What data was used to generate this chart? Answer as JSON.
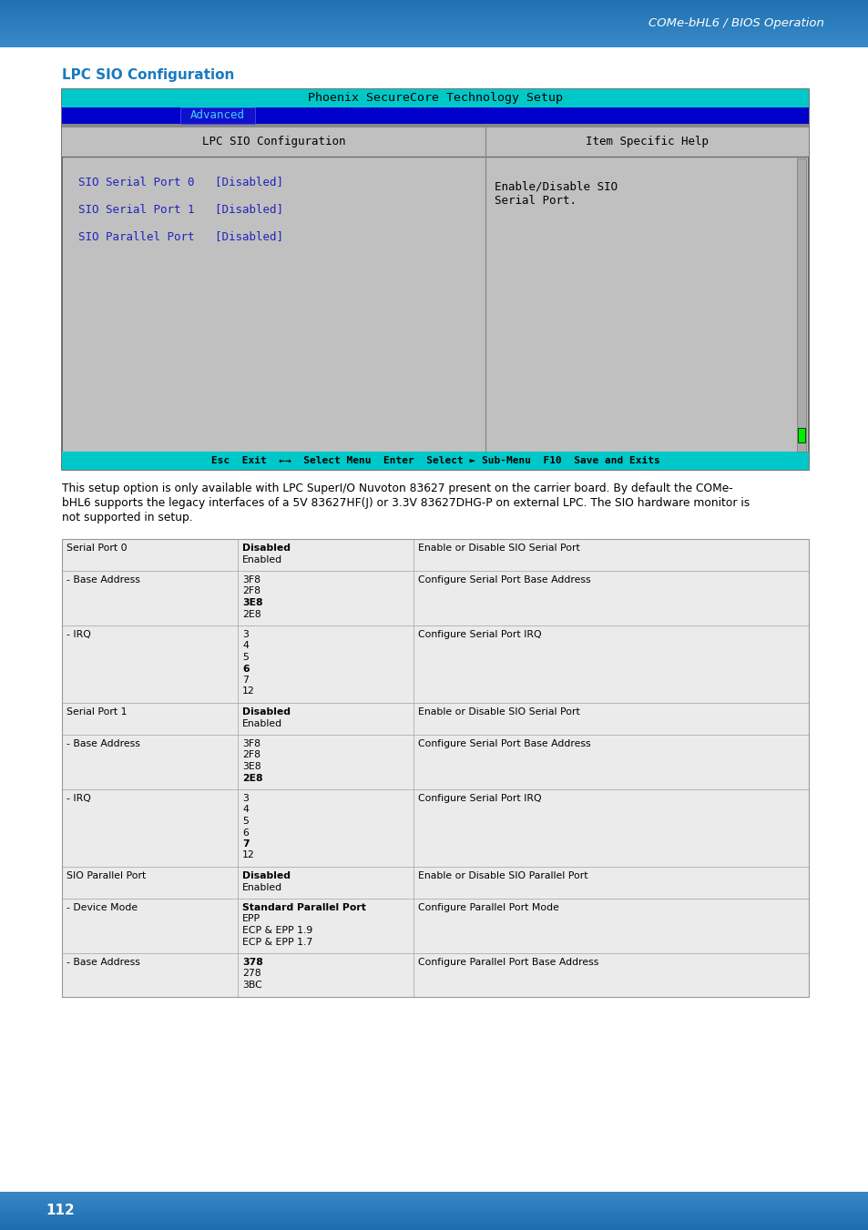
{
  "page_title": "COMe-bHL6 / BIOS Operation",
  "section_title": "LPC SIO Configuration",
  "bios_title": "Phoenix SecureCore Technology Setup",
  "bios_tab": "Advanced",
  "bios_left_header": "LPC SIO Configuration",
  "bios_right_header": "Item Specific Help",
  "bios_items": [
    "SIO Serial Port 0   [Disabled]",
    "SIO Serial Port 1   [Disabled]",
    "SIO Parallel Port   [Disabled]"
  ],
  "bios_help_line1": "Enable/Disable SIO",
  "bios_help_line2": "Serial Port.",
  "bios_bottom_bar": "Esc  Exit  ←→  Select Menu  Enter  Select ► Sub-Menu  F10  Save and Exits",
  "desc_lines": [
    "This setup option is only available with LPC SuperI/O Nuvoton 83627 present on the carrier board. By default the COMe-",
    "bHL6 supports the legacy interfaces of a 5V 83627HF(J) or 3.3V 83627DHG-P on external LPC. The SIO hardware monitor is",
    "not supported in setup."
  ],
  "table_rows": [
    {
      "col1": "Serial Port 0",
      "col2": [
        "Disabled",
        "Enabled"
      ],
      "col2_bold": "Disabled",
      "col3": "Enable or Disable SIO Serial Port"
    },
    {
      "col1": "- Base Address",
      "col2": [
        "3F8",
        "2F8",
        "3E8",
        "2E8"
      ],
      "col2_bold": "3E8",
      "col3": "Configure Serial Port Base Address"
    },
    {
      "col1": "- IRQ",
      "col2": [
        "3",
        "4",
        "5",
        "6",
        "7",
        "12"
      ],
      "col2_bold": "6",
      "col3": "Configure Serial Port IRQ"
    },
    {
      "col1": "Serial Port 1",
      "col2": [
        "Disabled",
        "Enabled"
      ],
      "col2_bold": "Disabled",
      "col3": "Enable or Disable SIO Serial Port"
    },
    {
      "col1": "- Base Address",
      "col2": [
        "3F8",
        "2F8",
        "3E8",
        "2E8"
      ],
      "col2_bold": "2E8",
      "col3": "Configure Serial Port Base Address"
    },
    {
      "col1": "- IRQ",
      "col2": [
        "3",
        "4",
        "5",
        "6",
        "7",
        "12"
      ],
      "col2_bold": "7",
      "col3": "Configure Serial Port IRQ"
    },
    {
      "col1": "SIO Parallel Port",
      "col2": [
        "Disabled",
        "Enabled"
      ],
      "col2_bold": "Disabled",
      "col3": "Enable or Disable SIO Parallel Port"
    },
    {
      "col1": "- Device Mode",
      "col2": [
        "Standard Parallel Port",
        "EPP",
        "ECP & EPP 1.9",
        "ECP & EPP 1.7"
      ],
      "col2_bold": "Standard Parallel Port",
      "col3": "Configure Parallel Port Mode"
    },
    {
      "col1": "- Base Address",
      "col2": [
        "378",
        "278",
        "3BC"
      ],
      "col2_bold": "378",
      "col3": "Configure Parallel Port Base Address"
    }
  ],
  "section_title_color": "#1a7abf",
  "bios_item_color": "#2222bb",
  "page_num": "112"
}
